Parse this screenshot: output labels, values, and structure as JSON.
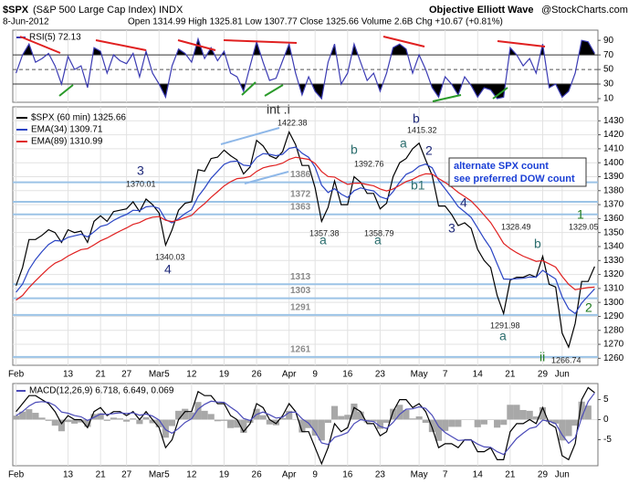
{
  "header": {
    "symbol": "$SPX",
    "name": "(S&P 500 Large Cap Index) INDX",
    "source": "Objective Elliott Wave",
    "site": "@StockCharts.com",
    "date": "8-Jun-2012",
    "quote": "Open 1314.99 High 1325.81 Low 1307.77 Close 1325.66 Volume 2.6B Chg +10.67 (+0.81%)"
  },
  "chart_data": [
    {
      "type": "line",
      "title": "RSI(5) 72.13",
      "ylim": [
        5,
        104
      ],
      "yticks": [
        90,
        70,
        50,
        30,
        10
      ],
      "thresholds": [
        70,
        30
      ],
      "midline": 50,
      "fill_color": "#000000",
      "series": [
        {
          "color": "#3b3bb3",
          "values": [
            45,
            70,
            85,
            60,
            65,
            72,
            55,
            30,
            68,
            50,
            55,
            25,
            80,
            75,
            45,
            70,
            62,
            58,
            72,
            40,
            75,
            45,
            30,
            12,
            55,
            78,
            72,
            60,
            92,
            65,
            80,
            62,
            75,
            45,
            40,
            20,
            55,
            88,
            60,
            35,
            38,
            62,
            85,
            45,
            15,
            40,
            20,
            10,
            60,
            85,
            30,
            45,
            85,
            60,
            35,
            45,
            20,
            45,
            80,
            85,
            78,
            45,
            70,
            50,
            25,
            12,
            40,
            30,
            15,
            40,
            28,
            12,
            25,
            22,
            10,
            12,
            80,
            70,
            55,
            65,
            45,
            85,
            25,
            30,
            12,
            20,
            45,
            90,
            88,
            72.13
          ]
        }
      ]
    },
    {
      "type": "line",
      "ylim": [
        1255,
        1440
      ],
      "grid": true,
      "yticks": [
        1260,
        1270,
        1280,
        1290,
        1300,
        1310,
        1320,
        1330,
        1340,
        1350,
        1360,
        1370,
        1380,
        1390,
        1400,
        1410,
        1420,
        1430
      ],
      "categories": [
        "Feb",
        null,
        null,
        null,
        null,
        null,
        null,
        null,
        "13",
        null,
        null,
        null,
        null,
        "21",
        null,
        null,
        null,
        "27",
        null,
        null,
        null,
        null,
        "Mar5",
        null,
        null,
        null,
        null,
        "12",
        null,
        null,
        null,
        null,
        "19",
        null,
        null,
        null,
        null,
        "26",
        null,
        null,
        null,
        null,
        "Apr",
        null,
        null,
        null,
        "9",
        null,
        null,
        null,
        null,
        "16",
        null,
        null,
        null,
        null,
        "23",
        null,
        null,
        null,
        null,
        null,
        "May",
        null,
        null,
        null,
        "7",
        null,
        null,
        null,
        null,
        "14",
        null,
        null,
        null,
        null,
        "21",
        null,
        null,
        null,
        null,
        "29",
        null,
        null,
        "Jun",
        null,
        null,
        null,
        null,
        null
      ],
      "levels": [
        1386,
        1372,
        1363,
        1313,
        1303,
        1291,
        1261
      ],
      "level_color": "#9cc3e6",
      "series": [
        {
          "name": "$SPX (60 min) 1325.66",
          "color": "#000000",
          "values": [
            1312,
            1325,
            1345,
            1345,
            1348,
            1352,
            1350,
            1343,
            1352,
            1350,
            1351,
            1343,
            1358,
            1362,
            1358,
            1365,
            1366,
            1367,
            1372,
            1365,
            1374,
            1370,
            1364,
            1341,
            1352,
            1366,
            1371,
            1372,
            1395,
            1394,
            1403,
            1404,
            1409,
            1405,
            1402,
            1392,
            1397,
            1416,
            1412,
            1405,
            1403,
            1408,
            1422,
            1413,
            1398,
            1398,
            1382,
            1358,
            1368,
            1387,
            1370,
            1370,
            1390,
            1386,
            1378,
            1378,
            1367,
            1371,
            1390,
            1400,
            1403,
            1410,
            1414,
            1402,
            1391,
            1369,
            1369,
            1363,
            1355,
            1357,
            1353,
            1338,
            1330,
            1325,
            1305,
            1292,
            1316,
            1318,
            1318,
            1320,
            1318,
            1333,
            1313,
            1311,
            1278,
            1268,
            1285,
            1315,
            1315,
            1325.66
          ]
        },
        {
          "name": "EMA(34) 1309.71",
          "color": "#2a44c4",
          "values": [
            1307.3,
            1313.1,
            1323.6,
            1330.7,
            1336.4,
            1341.5,
            1344.3,
            1343.9,
            1346.6,
            1347.7,
            1348.8,
            1346.9,
            1350.6,
            1354.4,
            1355.6,
            1358.7,
            1361.1,
            1363,
            1366,
            1365.7,
            1368.4,
            1368.9,
            1367.3,
            1359.3,
            1356.9,
            1359.9,
            1363.6,
            1366.4,
            1375.8,
            1381.8,
            1388.8,
            1393.8,
            1398.8,
            1400.8,
            1401.2,
            1398.2,
            1397.8,
            1403.8,
            1406.5,
            1406,
            1405,
            1406,
            1410.3,
            1411.2,
            1406.8,
            1403.9,
            1396.7,
            1383.9,
            1378.7,
            1381.4,
            1377.6,
            1375.1,
            1380,
            1382,
            1380.7,
            1379.8,
            1375.6,
            1374.1,
            1379.3,
            1386.1,
            1391.7,
            1393.8,
            1397.5,
            1399,
            1396.4,
            1387.4,
            1381.3,
            1375.3,
            1368.6,
            1364.8,
            1360.9,
            1353.3,
            1345.6,
            1338.8,
            1327.6,
            1316.8,
            1316.5,
            1317,
            1317.3,
            1318.2,
            1318.1,
            1323,
            1319.7,
            1316.8,
            1304,
            1295.4,
            1292,
            1299.6,
            1304.7,
            1309.71
          ]
        },
        {
          "name": "EMA(89) 1310.99",
          "color": "#e02020",
          "values": [
            1301.7,
            1305,
            1310.6,
            1315.4,
            1320,
            1324.5,
            1328.1,
            1330.2,
            1333.2,
            1335.6,
            1337.8,
            1338.5,
            1341.2,
            1344.1,
            1346.1,
            1348.7,
            1351.1,
            1353.3,
            1355.9,
            1357.2,
            1359.5,
            1361,
            1361.4,
            1358.8,
            1357.9,
            1359,
            1360.7,
            1362.3,
            1366.9,
            1370.7,
            1375.2,
            1379.2,
            1383.4,
            1386.4,
            1388.6,
            1389.1,
            1390.2,
            1393.8,
            1396.3,
            1397.5,
            1398.3,
            1399.7,
            1402.4,
            1403.9,
            1403.1,
            1402.4,
            1399.5,
            1393.7,
            1390.1,
            1389.7,
            1386.9,
            1384.5,
            1385.3,
            1385.4,
            1384.4,
            1383.5,
            1381.2,
            1379.8,
            1381.2,
            1383.8,
            1386.5,
            1388.1,
            1390.5,
            1392.1,
            1391.9,
            1388.7,
            1385.9,
            1382.7,
            1378.8,
            1375.8,
            1372.6,
            1367.8,
            1362.5,
            1357.2,
            1349.9,
            1342.2,
            1338.5,
            1335.6,
            1333.1,
            1331.3,
            1329.4,
            1329.9,
            1327.6,
            1325.3,
            1318.7,
            1313,
            1309.1,
            1309.9,
            1310.6,
            1310.99
          ]
        }
      ],
      "annotations": [
        "3",
        "4",
        "int .i",
        "b",
        "a",
        "a",
        "b",
        "a",
        "2",
        "b1",
        "4",
        "3",
        "b",
        "a",
        "ii",
        "1",
        "2"
      ],
      "price_labels": [
        1370.01,
        1340.03,
        1422.38,
        1392.76,
        1357.38,
        1358.79,
        1415.32,
        1328.49,
        1291.98,
        1329.05,
        1266.74
      ],
      "note": [
        "alternate SPX count",
        "see preferred DOW count"
      ]
    },
    {
      "type": "line",
      "title": "MACD(12,26,9) 6.718, 6.649, 0.069",
      "ylim": [
        -11.5,
        9
      ],
      "yticks": [
        5,
        0,
        -5
      ],
      "categories": [
        "Feb",
        null,
        null,
        null,
        null,
        null,
        null,
        null,
        "13",
        null,
        null,
        null,
        null,
        "21",
        null,
        null,
        null,
        "27",
        null,
        null,
        null,
        null,
        "Mar5",
        null,
        null,
        null,
        null,
        "12",
        null,
        null,
        null,
        null,
        "19",
        null,
        null,
        null,
        null,
        "26",
        null,
        null,
        null,
        null,
        "Apr",
        null,
        null,
        null,
        "9",
        null,
        null,
        null,
        null,
        "16",
        null,
        null,
        null,
        null,
        "23",
        null,
        null,
        null,
        null,
        null,
        "May",
        null,
        null,
        null,
        "7",
        null,
        null,
        null,
        null,
        "14",
        null,
        null,
        null,
        null,
        "21",
        null,
        null,
        null,
        null,
        "29",
        null,
        null,
        "Jun",
        null,
        null,
        null,
        null,
        null
      ],
      "series": [
        {
          "type": "bar",
          "color": "#a8a8a8",
          "values": [
            1,
            2,
            2.6,
            1.7,
            0.5,
            -0.3,
            -1.5,
            -2.9,
            -0.6,
            -1,
            -0.7,
            -1.8,
            1.4,
            1.6,
            -0.3,
            0.5,
            0.3,
            -0.5,
            0.3,
            -1.1,
            0.6,
            -0.9,
            -1.9,
            -4.5,
            -1.6,
            2.2,
            2.7,
            1.8,
            4.4,
            2.2,
            1.4,
            -0.4,
            -0.3,
            -2.1,
            -2,
            -3.3,
            -0.8,
            2.7,
            1.1,
            -1.2,
            -1.4,
            0.4,
            2.2,
            0.1,
            -3.2,
            -2.1,
            -4,
            -5.2,
            -0.8,
            3.4,
            0.9,
            1.2,
            4,
            2,
            -0.7,
            -0.5,
            -2.3,
            -0.8,
            2.7,
            3.7,
            2.4,
            0.3,
            0.8,
            -0.8,
            -3.1,
            -5.3,
            -2.8,
            -1.8,
            -1.8,
            0.1,
            0.1,
            -1.9,
            -1.2,
            -0.1,
            -2,
            -1.3,
            3.7,
            3.7,
            2.4,
            2.2,
            0.8,
            3.1,
            -0.6,
            -1,
            -5.2,
            -4.1,
            -1.5,
            4.5,
            3.5,
            0.069
          ]
        },
        {
          "color": "#000000",
          "values": [
            2,
            4,
            6,
            6,
            5,
            4,
            2,
            -1,
            1,
            0,
            0,
            -2,
            2,
            3,
            1,
            2,
            2,
            1,
            2,
            0,
            2,
            0,
            -2,
            -7,
            -5,
            0,
            2,
            2,
            7,
            6,
            6,
            4,
            4,
            1,
            0,
            -3,
            -1,
            4,
            3,
            0,
            -1,
            1,
            4,
            2,
            -3,
            -3,
            -7,
            -11,
            -7,
            -1,
            -3,
            -2,
            3,
            2,
            -1,
            -1,
            -4,
            -3,
            2,
            5,
            5,
            3,
            4,
            2,
            -2,
            -7,
            -6,
            -6,
            -7,
            -5,
            -5,
            -8,
            -8,
            -7,
            -10,
            -10,
            -3,
            -1,
            -1,
            0,
            -1,
            3,
            -1,
            -2,
            -9,
            -10,
            -6,
            5,
            8,
            6.718
          ]
        },
        {
          "color": "#4a4ab8",
          "values": [
            1,
            2,
            3.4,
            4.3,
            4.5,
            4.3,
            3.5,
            1.9,
            1.6,
            1,
            0.7,
            -0.2,
            0.6,
            1.4,
            1.3,
            1.5,
            1.7,
            1.5,
            1.7,
            1.1,
            1.4,
            0.9,
            -0.1,
            -2.5,
            -3.4,
            -2.2,
            -0.7,
            0.2,
            2.6,
            3.8,
            4.6,
            4.4,
            4.3,
            3.1,
            2,
            0.3,
            -0.2,
            1.3,
            1.9,
            1.2,
            0.4,
            0.6,
            1.8,
            1.9,
            0.2,
            -0.9,
            -3,
            -5.8,
            -6.2,
            -4.4,
            -3.9,
            -3.2,
            -1,
            0,
            -0.3,
            -0.5,
            -1.7,
            -2.2,
            -0.7,
            1.3,
            2.6,
            2.7,
            3.2,
            2.8,
            1.1,
            -1.7,
            -3.2,
            -4.2,
            -5.2,
            -5.1,
            -5.1,
            -6.1,
            -6.8,
            -6.9,
            -8,
            -8.7,
            -6.7,
            -4.7,
            -3.4,
            -2.2,
            -1.8,
            -0.1,
            -0.4,
            -1,
            -3.8,
            -5.9,
            -4.5,
            0.5,
            4.5,
            6.649
          ]
        }
      ]
    }
  ]
}
